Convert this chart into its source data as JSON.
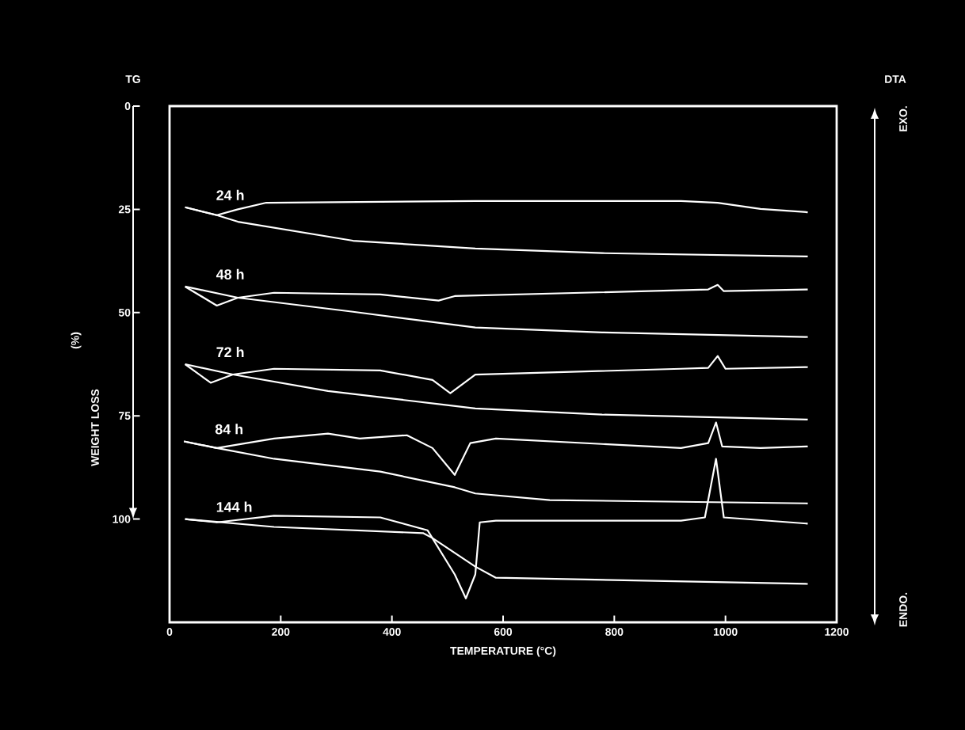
{
  "chart_data": {
    "type": "line",
    "xlabel": "TEMPERATURE (°C)",
    "ylabel": "WEIGHT LOSS",
    "xlim": [
      0,
      1200
    ],
    "xticks": [
      0,
      200,
      400,
      600,
      800,
      1000,
      1200
    ],
    "ylim": [
      125,
      0
    ],
    "yticks": [
      0,
      25,
      50,
      75,
      100
    ],
    "annotations": [
      "TG",
      "(%)",
      "DTA",
      "EXO.",
      "ENDO."
    ],
    "series": [
      {
        "name": "24 h",
        "color": "#ffffff",
        "x": [
          28,
          85,
          123,
          174,
          550,
          920,
          986,
          1063,
          1148
        ],
        "values": [
          24.5,
          26.4,
          25,
          23.4,
          23.0,
          23.0,
          23.4,
          24.9,
          25.7
        ]
      },
      {
        "color": "#ffffff",
        "x": [
          28,
          85,
          123,
          330,
          550,
          778,
          1148
        ],
        "values": [
          24.5,
          26.4,
          28,
          32.6,
          34.5,
          35.6,
          36.4
        ]
      },
      {
        "name": "48 h",
        "color": "#ffffff",
        "x": [
          28,
          85,
          123,
          188,
          379,
          484,
          513,
          969,
          986,
          997,
          1148
        ],
        "values": [
          43.7,
          48.3,
          46.4,
          45.2,
          45.6,
          47.1,
          46,
          44.4,
          43.3,
          44.8,
          44.4
        ]
      },
      {
        "color": "#ffffff",
        "x": [
          28,
          123,
          330,
          550,
          778,
          1148
        ],
        "values": [
          43.7,
          46.4,
          49.8,
          53.6,
          54.8,
          55.9
        ]
      },
      {
        "name": "72 h",
        "color": "#ffffff",
        "x": [
          28,
          74,
          114,
          188,
          379,
          473,
          505,
          550,
          920,
          969,
          986,
          1000,
          1148
        ],
        "values": [
          62.5,
          67,
          65,
          63.6,
          64,
          66.3,
          69.5,
          65,
          63.6,
          63.4,
          60.5,
          63.6,
          63.2
        ]
      },
      {
        "color": "#ffffff",
        "x": [
          28,
          114,
          285,
          550,
          778,
          1148
        ],
        "values": [
          62.5,
          65,
          69,
          73.2,
          74.7,
          75.9
        ]
      },
      {
        "name": "84 h",
        "color": "#ffffff",
        "x": [
          26,
          85,
          188,
          285,
          342,
          427,
          473,
          513,
          541,
          587,
          920,
          969,
          983,
          994,
          1063,
          1148
        ],
        "values": [
          81.2,
          82.8,
          80.5,
          79.3,
          80.5,
          79.7,
          82.8,
          89.3,
          81.6,
          80.5,
          82.8,
          81.6,
          76.6,
          82.4,
          82.8,
          82.4
        ]
      },
      {
        "color": "#ffffff",
        "x": [
          26,
          85,
          188,
          379,
          513,
          550,
          684,
          1148
        ],
        "values": [
          81.2,
          82.8,
          85.4,
          88.5,
          92.3,
          93.8,
          95.4,
          96.2
        ]
      },
      {
        "name": "144 h",
        "color": "#ffffff",
        "x": [
          28,
          85,
          188,
          379,
          464,
          513,
          533,
          550,
          558,
          587,
          920,
          963,
          983,
          997,
          1148
        ],
        "values": [
          100,
          100.8,
          99.2,
          99.6,
          102.7,
          113.4,
          119.2,
          113.4,
          100.8,
          100.4,
          100.4,
          99.6,
          85.4,
          99.6,
          101.1
        ]
      },
      {
        "color": "#ffffff",
        "x": [
          28,
          188,
          456,
          473,
          550,
          587,
          1148
        ],
        "values": [
          100,
          101.9,
          103.4,
          104.6,
          111.5,
          114.2,
          115.7
        ]
      }
    ]
  }
}
